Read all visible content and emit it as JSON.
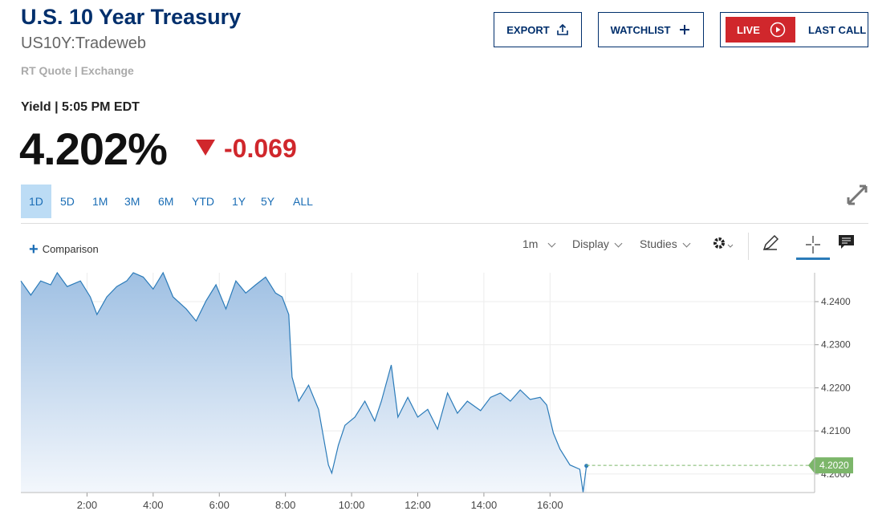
{
  "header": {
    "title": "U.S. 10 Year Treasury",
    "symbol": "US10Y:Tradeweb",
    "source": "RT Quote | Exchange"
  },
  "buttons": {
    "export": "EXPORT",
    "watchlist": "WATCHLIST",
    "live": "LIVE",
    "last_call": "LAST CALL"
  },
  "quote": {
    "label": "Yield | 5:05 PM EDT",
    "price": "4.202%",
    "change": "-0.069"
  },
  "ranges": [
    "1D",
    "5D",
    "1M",
    "3M",
    "6M",
    "YTD",
    "1Y",
    "5Y",
    "ALL"
  ],
  "toolbar": {
    "comparison": "Comparison",
    "interval": "1m",
    "display": "Display",
    "studies": "Studies"
  },
  "chart_data": {
    "type": "area",
    "color": "#2b7bb9",
    "x": [
      0.0,
      0.3,
      0.6,
      0.9,
      1.1,
      1.4,
      1.8,
      2.1,
      2.3,
      2.6,
      2.9,
      3.2,
      3.4,
      3.7,
      4.0,
      4.3,
      4.6,
      5.0,
      5.3,
      5.6,
      5.9,
      6.2,
      6.5,
      6.8,
      7.1,
      7.4,
      7.7,
      7.9,
      8.1,
      8.2,
      8.4,
      8.7,
      9.0,
      9.3,
      9.4,
      9.6,
      9.8,
      10.1,
      10.4,
      10.7,
      10.9,
      11.1,
      11.2,
      11.4,
      11.7,
      12.0,
      12.3,
      12.6,
      12.9,
      13.2,
      13.5,
      13.9,
      14.2,
      14.5,
      14.8,
      15.1,
      15.4,
      15.7,
      15.9,
      16.1,
      16.3,
      16.6,
      16.9,
      17.0,
      17.1
    ],
    "values": [
      4.2448,
      4.2415,
      4.2448,
      4.2439,
      4.2467,
      4.2435,
      4.2448,
      4.2411,
      4.237,
      4.2411,
      4.2435,
      4.2448,
      4.2467,
      4.2457,
      4.2429,
      4.2467,
      4.2411,
      4.2383,
      4.2355,
      4.2402,
      4.2439,
      4.2383,
      4.2448,
      4.242,
      4.2439,
      4.2457,
      4.242,
      4.2411,
      4.237,
      4.2225,
      4.2169,
      4.2206,
      4.215,
      4.2021,
      4.2002,
      4.2067,
      4.2113,
      4.2132,
      4.2169,
      4.2123,
      4.2169,
      4.2225,
      4.2253,
      4.2132,
      4.2178,
      4.2132,
      4.215,
      4.2104,
      4.2188,
      4.2141,
      4.2169,
      4.2147,
      4.2178,
      4.2188,
      4.2169,
      4.2195,
      4.2173,
      4.2178,
      4.216,
      4.2095,
      4.2058,
      4.2021,
      4.2011,
      4.1958,
      4.2019
    ],
    "xlim": [
      0,
      24
    ],
    "ylim": [
      4.1957,
      4.2467
    ],
    "xticks": [
      {
        "value": 2,
        "label": "2:00"
      },
      {
        "value": 4,
        "label": "4:00"
      },
      {
        "value": 6,
        "label": "6:00"
      },
      {
        "value": 8,
        "label": "8:00"
      },
      {
        "value": 10,
        "label": "10:00"
      },
      {
        "value": 12,
        "label": "12:00"
      },
      {
        "value": 14,
        "label": "14:00"
      },
      {
        "value": 16,
        "label": "16:00"
      }
    ],
    "yticks": [
      {
        "value": 4.2,
        "label": "4.2000"
      },
      {
        "value": 4.21,
        "label": "4.2100"
      },
      {
        "value": 4.22,
        "label": "4.2200"
      },
      {
        "value": 4.23,
        "label": "4.2300"
      },
      {
        "value": 4.24,
        "label": "4.2400"
      }
    ],
    "last_label": {
      "value": 4.202,
      "label": "4.2020"
    },
    "grid": true
  }
}
